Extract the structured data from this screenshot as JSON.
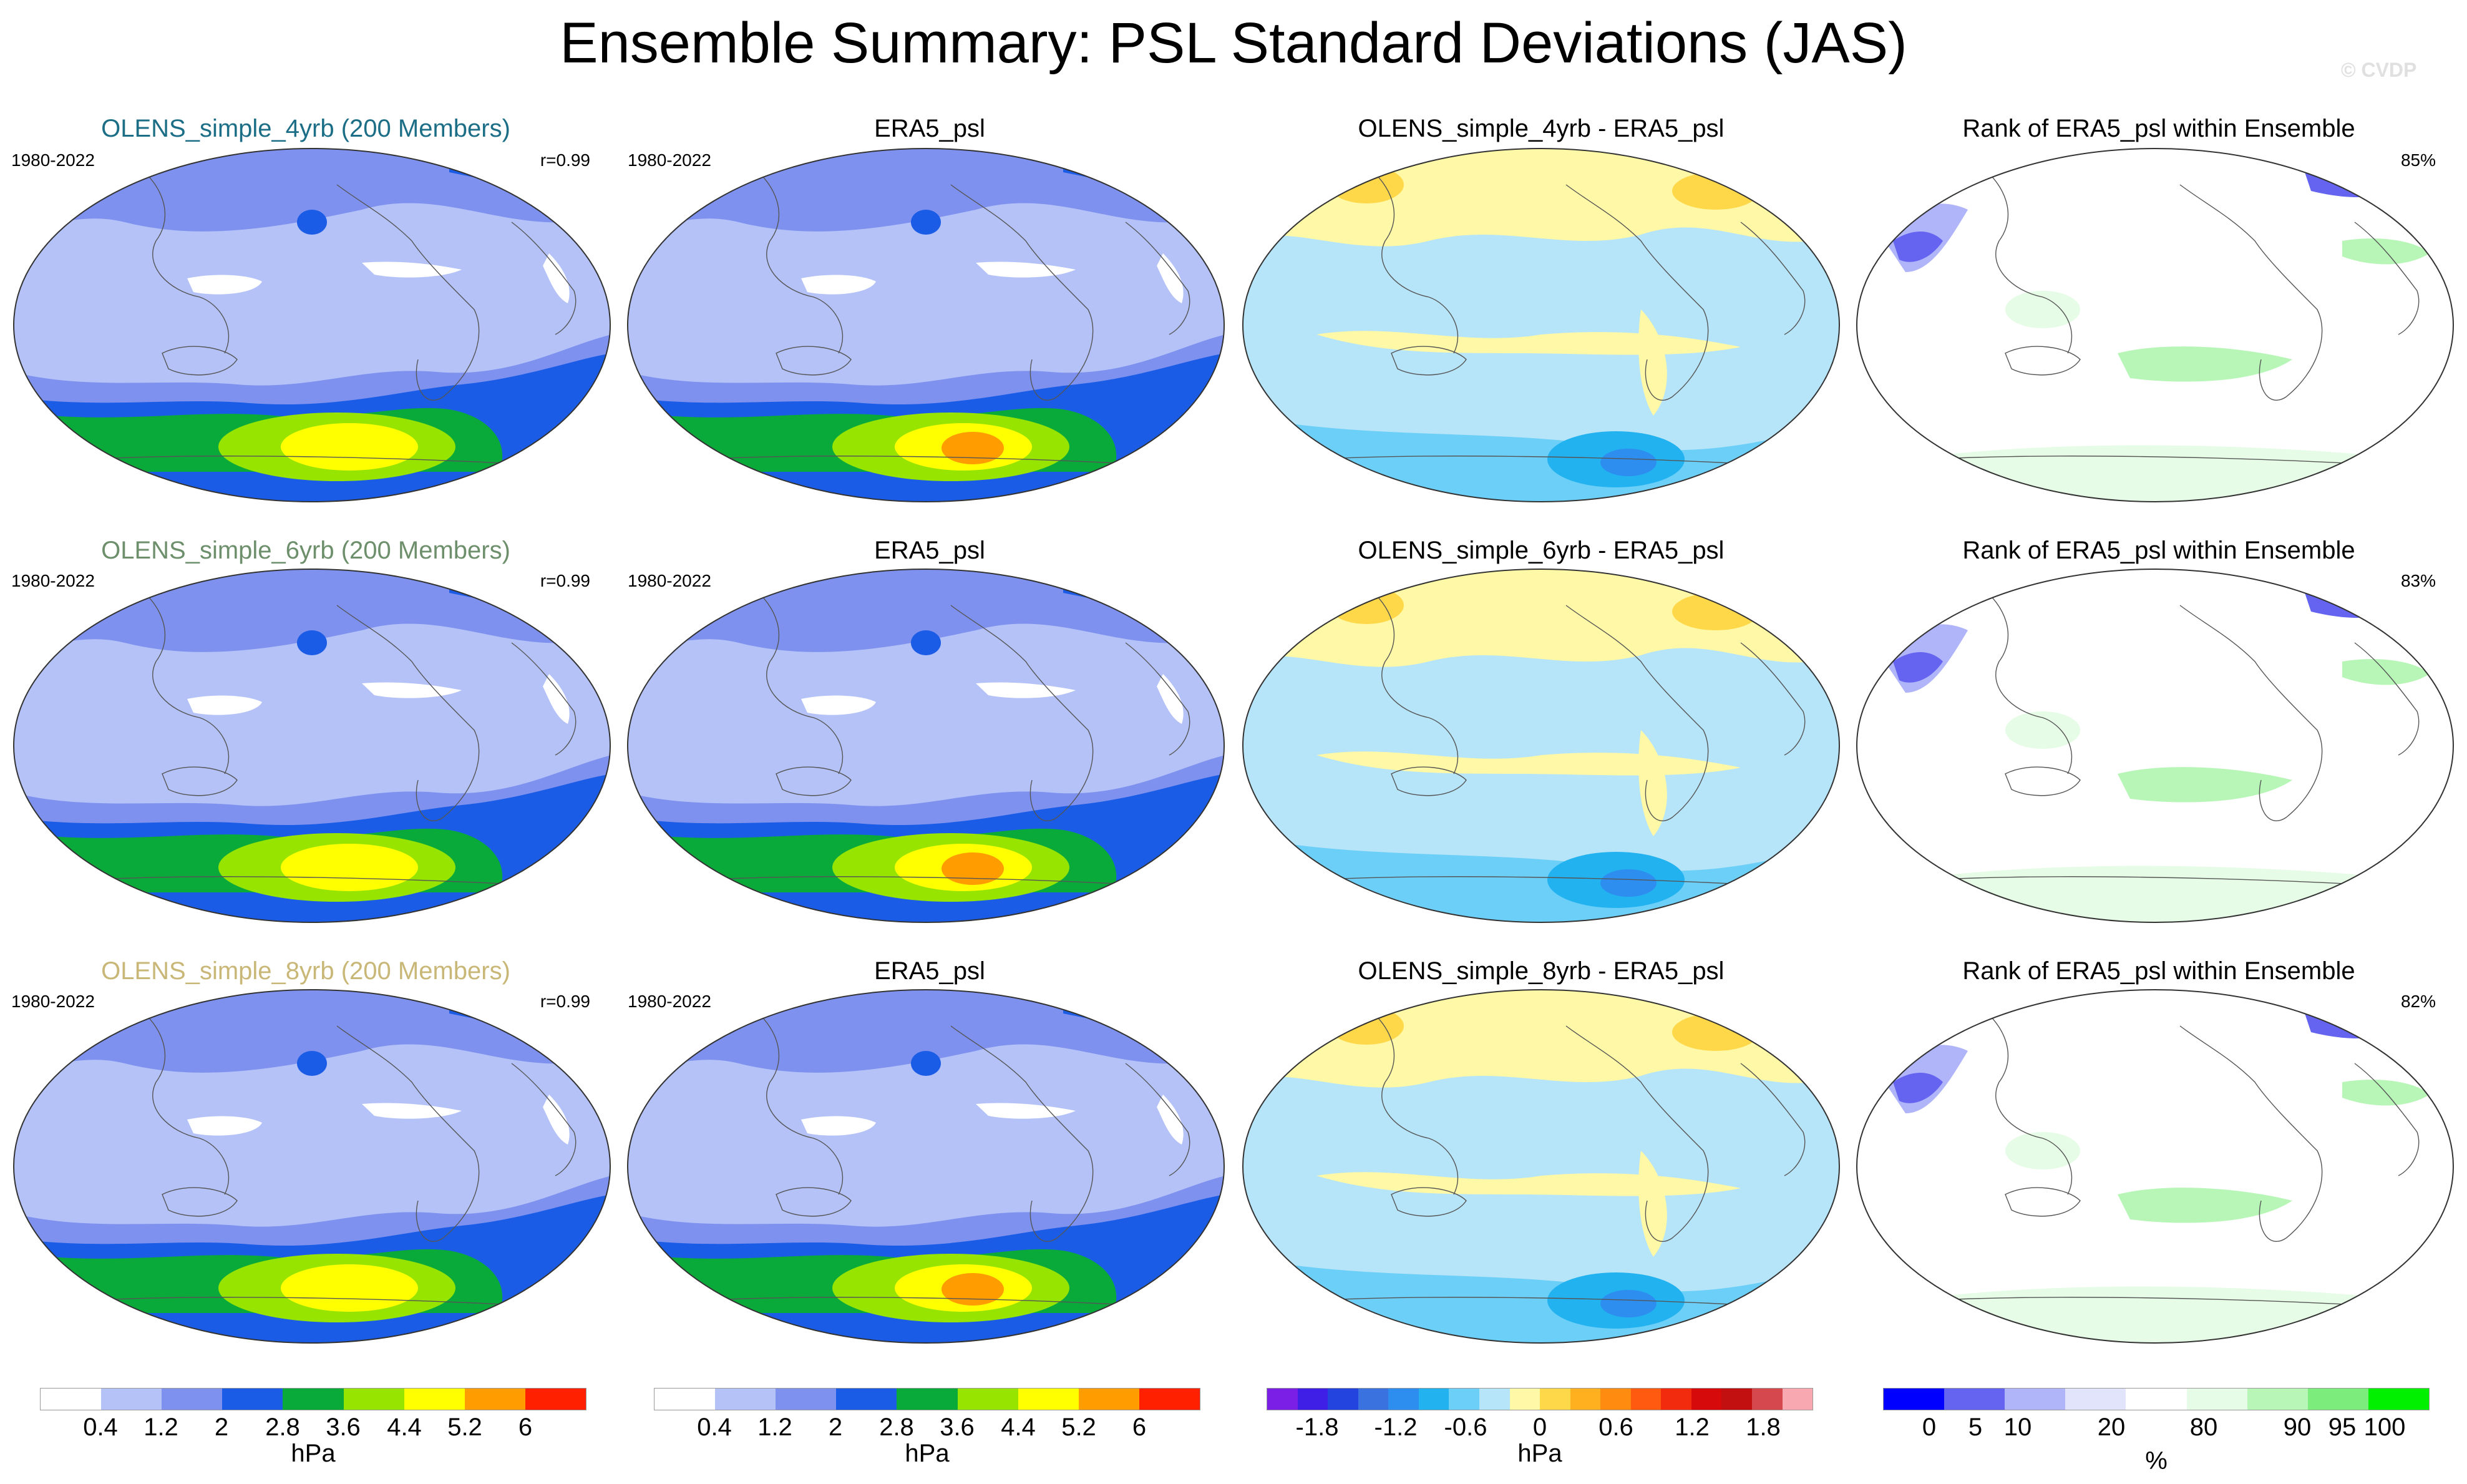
{
  "title": "Ensemble Summary: PSL Standard Deviations (JAS)",
  "watermark": "© CVDP",
  "colors": {
    "run": [
      "#1c6e86",
      "#6d8f6b",
      "#c8b777"
    ],
    "std_levels": [
      "#ffffff",
      "#b4c2f8",
      "#7e91ee",
      "#1a5ce6",
      "#0aaa3a",
      "#96e400",
      "#ffff00",
      "#ff9c00",
      "#ff2000"
    ],
    "diff_levels": [
      "#7c1fe6",
      "#3f1ee6",
      "#2444e0",
      "#3a72e0",
      "#2e8ef0",
      "#22b2f0",
      "#6ccff8",
      "#b6e4f8",
      "#fff8a6",
      "#ffd84a",
      "#ffb01e",
      "#ff8c10",
      "#ff5a10",
      "#f22a0e",
      "#d60a0a",
      "#c21010",
      "#d4484e",
      "#f8a8b0"
    ],
    "rank_levels": [
      "#0000ff",
      "#6464f0",
      "#b0b4f8",
      "#e2e4fc",
      "#ffffff",
      "#e6fce6",
      "#b8f6b8",
      "#7cec7c",
      "#00f000"
    ]
  },
  "rows": [
    {
      "ensemble": {
        "title": "OLENS_simple_4yrb (200 Members)",
        "period": "1980-2022",
        "r": "r=0.99"
      },
      "obs": {
        "title": "ERA5_psl",
        "period": "1980-2022"
      },
      "diff": {
        "title": "OLENS_simple_4yrb - ERA5_psl"
      },
      "rank": {
        "title": "Rank of ERA5_psl within Ensemble",
        "percent": "85%"
      }
    },
    {
      "ensemble": {
        "title": "OLENS_simple_6yrb (200 Members)",
        "period": "1980-2022",
        "r": "r=0.99"
      },
      "obs": {
        "title": "ERA5_psl",
        "period": "1980-2022"
      },
      "diff": {
        "title": "OLENS_simple_6yrb - ERA5_psl"
      },
      "rank": {
        "title": "Rank of ERA5_psl within Ensemble",
        "percent": "83%"
      }
    },
    {
      "ensemble": {
        "title": "OLENS_simple_8yrb (200 Members)",
        "period": "1980-2022",
        "r": "r=0.99"
      },
      "obs": {
        "title": "ERA5_psl",
        "period": "1980-2022"
      },
      "diff": {
        "title": "OLENS_simple_8yrb - ERA5_psl"
      },
      "rank": {
        "title": "Rank of ERA5_psl within Ensemble",
        "percent": "82%"
      }
    }
  ],
  "colorbars": [
    {
      "ticks": [
        "0.4",
        "1.2",
        "2",
        "2.8",
        "3.6",
        "4.4",
        "5.2",
        "6"
      ],
      "unit": "hPa"
    },
    {
      "ticks": [
        "0.4",
        "1.2",
        "2",
        "2.8",
        "3.6",
        "4.4",
        "5.2",
        "6"
      ],
      "unit": "hPa"
    },
    {
      "ticks": [
        "-1.8",
        "-1.2",
        "-0.6",
        "0",
        "0.6",
        "1.2",
        "1.8"
      ],
      "unit": "hPa"
    },
    {
      "ticks": [
        "0",
        "5",
        "10",
        "20",
        "80",
        "90",
        "95",
        "100"
      ],
      "unit": "%"
    }
  ],
  "chart_data": [
    {
      "type": "heatmap",
      "title": "OLENS_simple_4yrb (200 Members)",
      "subtitle_left": "1980-2022",
      "subtitle_right": "r=0.99",
      "levels": [
        0.4,
        1.2,
        2,
        2.8,
        3.6,
        4.4,
        5.2,
        6
      ],
      "unit": "hPa"
    },
    {
      "type": "heatmap",
      "title": "ERA5_psl",
      "subtitle_left": "1980-2022",
      "levels": [
        0.4,
        1.2,
        2,
        2.8,
        3.6,
        4.4,
        5.2,
        6
      ],
      "unit": "hPa"
    },
    {
      "type": "heatmap",
      "title": "OLENS_simple_4yrb - ERA5_psl",
      "levels": [
        -1.8,
        -1.2,
        -0.6,
        0,
        0.6,
        1.2,
        1.8
      ],
      "unit": "hPa"
    },
    {
      "type": "heatmap",
      "title": "Rank of ERA5_psl within Ensemble",
      "subtitle_right": "85%",
      "levels": [
        0,
        5,
        10,
        20,
        80,
        90,
        95,
        100
      ],
      "unit": "%"
    },
    {
      "type": "heatmap",
      "title": "OLENS_simple_6yrb (200 Members)",
      "subtitle_left": "1980-2022",
      "subtitle_right": "r=0.99",
      "levels": [
        0.4,
        1.2,
        2,
        2.8,
        3.6,
        4.4,
        5.2,
        6
      ],
      "unit": "hPa"
    },
    {
      "type": "heatmap",
      "title": "ERA5_psl",
      "subtitle_left": "1980-2022",
      "levels": [
        0.4,
        1.2,
        2,
        2.8,
        3.6,
        4.4,
        5.2,
        6
      ],
      "unit": "hPa"
    },
    {
      "type": "heatmap",
      "title": "OLENS_simple_6yrb - ERA5_psl",
      "levels": [
        -1.8,
        -1.2,
        -0.6,
        0,
        0.6,
        1.2,
        1.8
      ],
      "unit": "hPa"
    },
    {
      "type": "heatmap",
      "title": "Rank of ERA5_psl within Ensemble",
      "subtitle_right": "83%",
      "levels": [
        0,
        5,
        10,
        20,
        80,
        90,
        95,
        100
      ],
      "unit": "%"
    },
    {
      "type": "heatmap",
      "title": "OLENS_simple_8yrb (200 Members)",
      "subtitle_left": "1980-2022",
      "subtitle_right": "r=0.99",
      "levels": [
        0.4,
        1.2,
        2,
        2.8,
        3.6,
        4.4,
        5.2,
        6
      ],
      "unit": "hPa"
    },
    {
      "type": "heatmap",
      "title": "ERA5_psl",
      "subtitle_left": "1980-2022",
      "levels": [
        0.4,
        1.2,
        2,
        2.8,
        3.6,
        4.4,
        5.2,
        6
      ],
      "unit": "hPa"
    },
    {
      "type": "heatmap",
      "title": "OLENS_simple_8yrb - ERA5_psl",
      "levels": [
        -1.8,
        -1.2,
        -0.6,
        0,
        0.6,
        1.2,
        1.8
      ],
      "unit": "hPa"
    },
    {
      "type": "heatmap",
      "title": "Rank of ERA5_psl within Ensemble",
      "subtitle_right": "82%",
      "levels": [
        0,
        5,
        10,
        20,
        80,
        90,
        95,
        100
      ],
      "unit": "%"
    }
  ]
}
